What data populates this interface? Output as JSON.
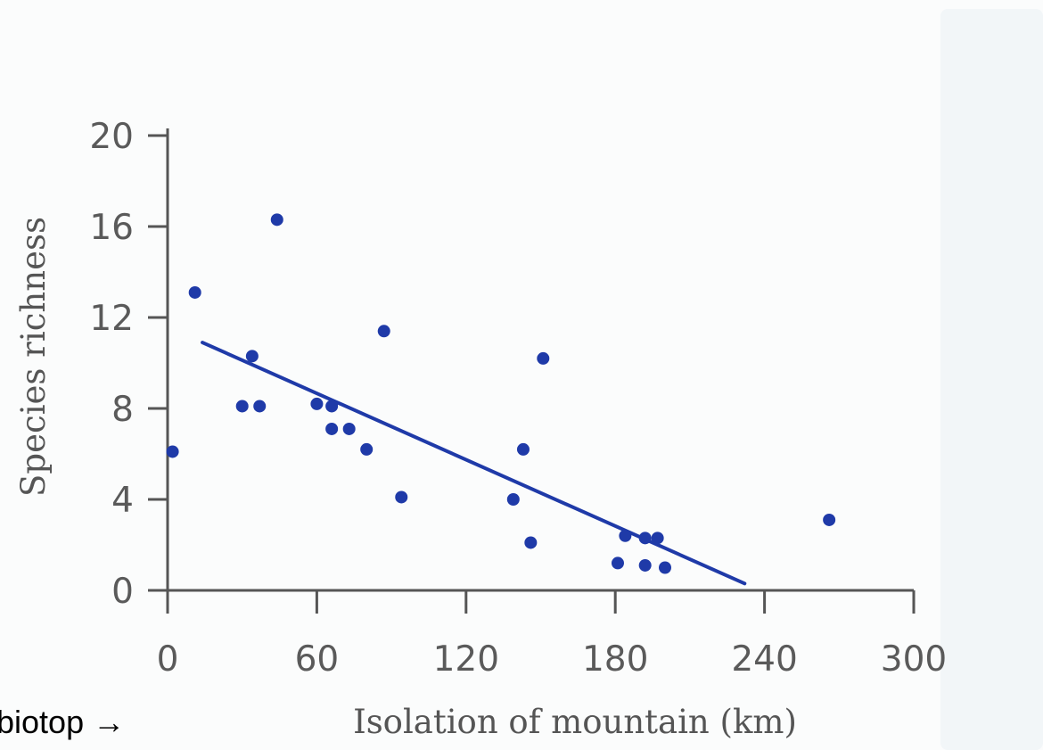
{
  "chart_data": {
    "type": "scatter",
    "title": "",
    "xlabel": "Isolation of mountain (km)",
    "ylabel": "Species richness",
    "xlim": [
      0,
      300
    ],
    "ylim": [
      0,
      20
    ],
    "xticks": [
      "0",
      "60",
      "120",
      "180",
      "240",
      "300"
    ],
    "yticks": [
      "0",
      "4",
      "8",
      "12",
      "16",
      "20"
    ],
    "grid": false,
    "legend": "none",
    "marker_color": "#1f3aa8",
    "line_color": "#1f3aa8",
    "axis_color": "#555555",
    "points": [
      {
        "x": 2,
        "y": 6.1
      },
      {
        "x": 11,
        "y": 13.1
      },
      {
        "x": 30,
        "y": 8.1
      },
      {
        "x": 34,
        "y": 10.3
      },
      {
        "x": 37,
        "y": 8.1
      },
      {
        "x": 44,
        "y": 16.3
      },
      {
        "x": 60,
        "y": 8.2
      },
      {
        "x": 66,
        "y": 7.1
      },
      {
        "x": 66,
        "y": 8.1
      },
      {
        "x": 73,
        "y": 7.1
      },
      {
        "x": 80,
        "y": 6.2
      },
      {
        "x": 87,
        "y": 11.4
      },
      {
        "x": 94,
        "y": 4.1
      },
      {
        "x": 139,
        "y": 4.0
      },
      {
        "x": 143,
        "y": 6.2
      },
      {
        "x": 146,
        "y": 2.1
      },
      {
        "x": 151,
        "y": 10.2
      },
      {
        "x": 181,
        "y": 1.2
      },
      {
        "x": 184,
        "y": 2.4
      },
      {
        "x": 192,
        "y": 1.1
      },
      {
        "x": 192,
        "y": 2.3
      },
      {
        "x": 197,
        "y": 2.3
      },
      {
        "x": 200,
        "y": 1.0
      },
      {
        "x": 266,
        "y": 3.1
      }
    ],
    "trend_line": {
      "x": [
        14,
        232
      ],
      "y": [
        10.9,
        0.3
      ]
    }
  },
  "annotation": {
    "label": "biotop →"
  }
}
